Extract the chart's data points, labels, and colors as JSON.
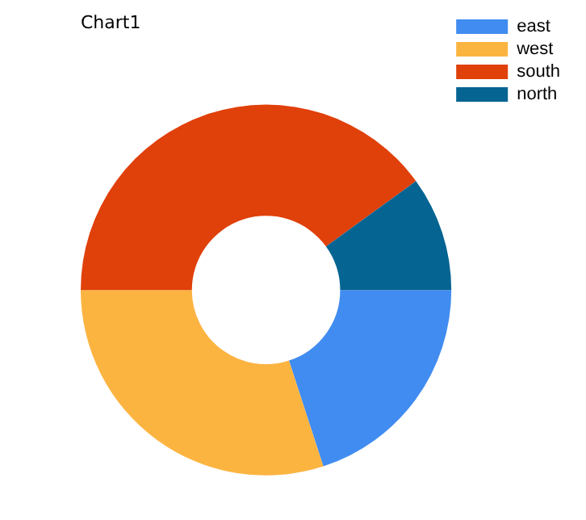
{
  "chart_data": {
    "type": "donut",
    "title": "Chart1",
    "categories": [
      "east",
      "west",
      "south",
      "north"
    ],
    "values": [
      20,
      30,
      40,
      10
    ],
    "colors": [
      "#418cf0",
      "#fcb441",
      "#e0400a",
      "#056492"
    ],
    "legend": "top right"
  }
}
